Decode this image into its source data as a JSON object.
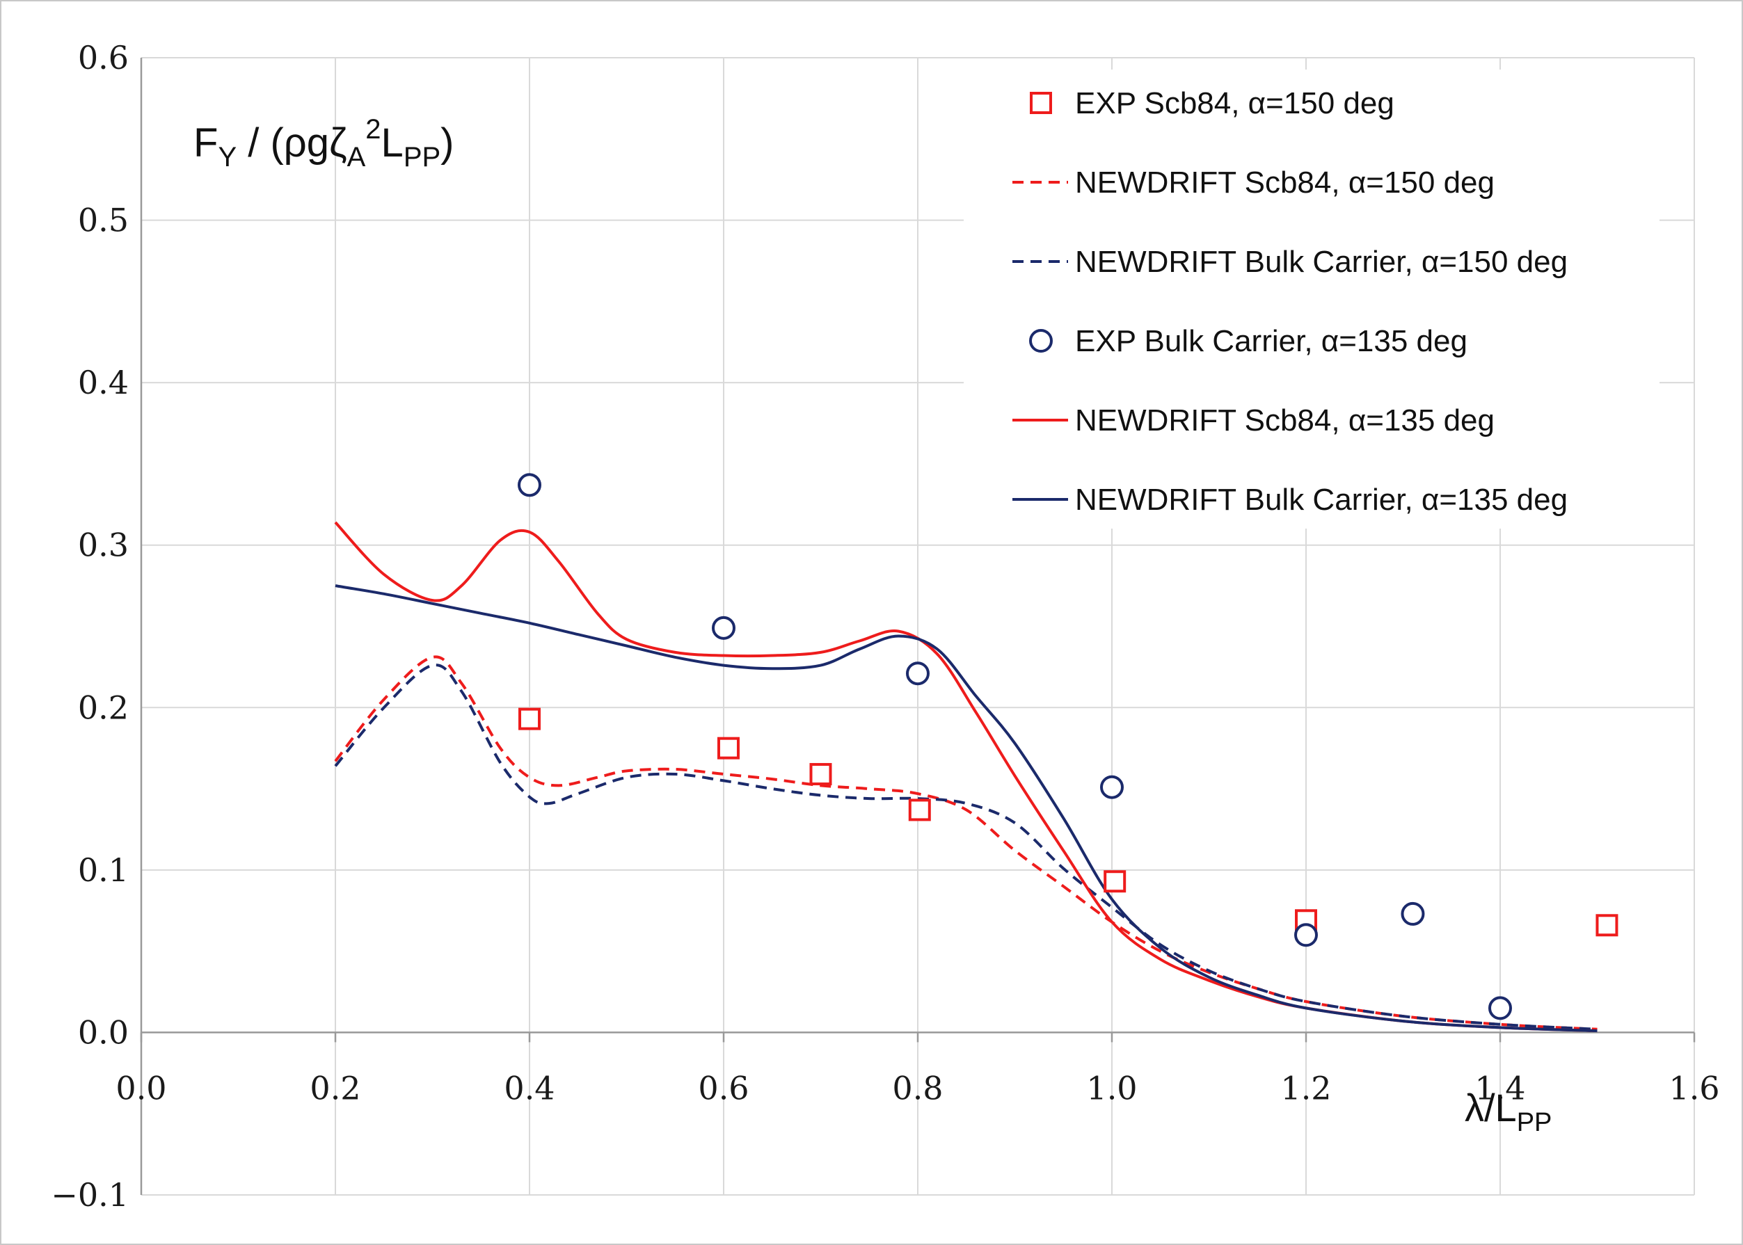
{
  "chart_data": {
    "type": "line",
    "title": "",
    "ylabel": "F",
    "ylabel_sub": "Y",
    "ylabel_rest": " / (ρgζ",
    "ylabel_sub2": "A",
    "ylabel_sup": "2",
    "ylabel_L": "L",
    "ylabel_sub3": "PP",
    "ylabel_close": ")",
    "xlabel": "λ/L",
    "xlabel_sub": "PP",
    "xlim": [
      0.0,
      1.6
    ],
    "ylim": [
      -0.1,
      0.6
    ],
    "grid": true,
    "x_ticks": [
      "0.0",
      "0.2",
      "0.4",
      "0.6",
      "0.8",
      "1.0",
      "1.2",
      "1.4",
      "1.6"
    ],
    "y_ticks": [
      "−0.1",
      "0.0",
      "0.1",
      "0.2",
      "0.3",
      "0.4",
      "0.5",
      "0.6"
    ],
    "x_tick_values": [
      0.0,
      0.2,
      0.4,
      0.6,
      0.8,
      1.0,
      1.2,
      1.4,
      1.6
    ],
    "y_tick_values": [
      -0.1,
      0.0,
      0.1,
      0.2,
      0.3,
      0.4,
      0.5,
      0.6
    ],
    "legend_position": "top-right",
    "colors": {
      "red": "#ee1c1c",
      "navy": "#1b2a6b",
      "grid": "#d9d9d9",
      "axis": "#999999"
    },
    "series": [
      {
        "name": "EXP Scb84, α=150 deg",
        "kind": "marker-square",
        "color": "#ee1c1c",
        "x": [
          0.4,
          0.605,
          0.7,
          0.802,
          1.003,
          1.2,
          1.51
        ],
        "y": [
          0.193,
          0.175,
          0.159,
          0.137,
          0.093,
          0.069,
          0.066
        ]
      },
      {
        "name": "NEWDRIFT Scb84, α=150 deg",
        "kind": "line-dashed",
        "color": "#ee1c1c",
        "x": [
          0.2,
          0.25,
          0.3,
          0.33,
          0.37,
          0.4,
          0.43,
          0.47,
          0.5,
          0.55,
          0.6,
          0.65,
          0.7,
          0.75,
          0.8,
          0.85,
          0.9,
          0.95,
          1.0,
          1.05,
          1.1,
          1.15,
          1.2,
          1.3,
          1.4,
          1.5
        ],
        "y": [
          0.167,
          0.205,
          0.231,
          0.215,
          0.175,
          0.157,
          0.152,
          0.157,
          0.161,
          0.162,
          0.159,
          0.156,
          0.152,
          0.15,
          0.147,
          0.137,
          0.112,
          0.09,
          0.068,
          0.05,
          0.037,
          0.027,
          0.019,
          0.01,
          0.005,
          0.002
        ]
      },
      {
        "name": "NEWDRIFT  Bulk Carrier, α=150 deg",
        "kind": "line-dashed",
        "color": "#1b2a6b",
        "x": [
          0.2,
          0.25,
          0.3,
          0.33,
          0.37,
          0.4,
          0.42,
          0.45,
          0.5,
          0.55,
          0.6,
          0.65,
          0.7,
          0.75,
          0.8,
          0.85,
          0.9,
          0.95,
          1.0,
          1.05,
          1.1,
          1.15,
          1.2,
          1.3,
          1.4,
          1.5
        ],
        "y": [
          0.164,
          0.2,
          0.226,
          0.21,
          0.166,
          0.145,
          0.141,
          0.147,
          0.157,
          0.159,
          0.155,
          0.15,
          0.146,
          0.144,
          0.144,
          0.141,
          0.129,
          0.101,
          0.077,
          0.054,
          0.038,
          0.027,
          0.019,
          0.01,
          0.005,
          0.002
        ]
      },
      {
        "name": "EXP  Bulk Carrier, α=135 deg",
        "kind": "marker-circle",
        "color": "#1b2a6b",
        "x": [
          0.4,
          0.6,
          0.8,
          1.0,
          1.2,
          1.31,
          1.4
        ],
        "y": [
          0.337,
          0.249,
          0.221,
          0.151,
          0.06,
          0.073,
          0.015
        ]
      },
      {
        "name": "NEWDRIFT Scb84, α=135 deg",
        "kind": "line-solid",
        "color": "#ee1c1c",
        "x": [
          0.2,
          0.25,
          0.3,
          0.33,
          0.37,
          0.4,
          0.43,
          0.47,
          0.5,
          0.55,
          0.6,
          0.65,
          0.7,
          0.74,
          0.78,
          0.82,
          0.86,
          0.9,
          0.95,
          1.0,
          1.05,
          1.1,
          1.15,
          1.2,
          1.3,
          1.4,
          1.5
        ],
        "y": [
          0.314,
          0.282,
          0.266,
          0.275,
          0.303,
          0.308,
          0.29,
          0.258,
          0.242,
          0.234,
          0.232,
          0.232,
          0.234,
          0.241,
          0.247,
          0.233,
          0.197,
          0.158,
          0.112,
          0.068,
          0.045,
          0.032,
          0.022,
          0.015,
          0.007,
          0.003,
          0.001
        ]
      },
      {
        "name": "NEWDRIFT  Bulk Carrier, α=135 deg",
        "kind": "line-solid",
        "color": "#1b2a6b",
        "x": [
          0.2,
          0.25,
          0.3,
          0.35,
          0.4,
          0.45,
          0.5,
          0.55,
          0.6,
          0.65,
          0.7,
          0.74,
          0.78,
          0.82,
          0.86,
          0.9,
          0.95,
          1.0,
          1.05,
          1.1,
          1.15,
          1.2,
          1.3,
          1.4,
          1.5
        ],
        "y": [
          0.275,
          0.27,
          0.264,
          0.258,
          0.252,
          0.245,
          0.238,
          0.231,
          0.226,
          0.224,
          0.226,
          0.236,
          0.244,
          0.236,
          0.207,
          0.178,
          0.132,
          0.082,
          0.052,
          0.034,
          0.023,
          0.015,
          0.007,
          0.003,
          0.001
        ]
      }
    ]
  }
}
